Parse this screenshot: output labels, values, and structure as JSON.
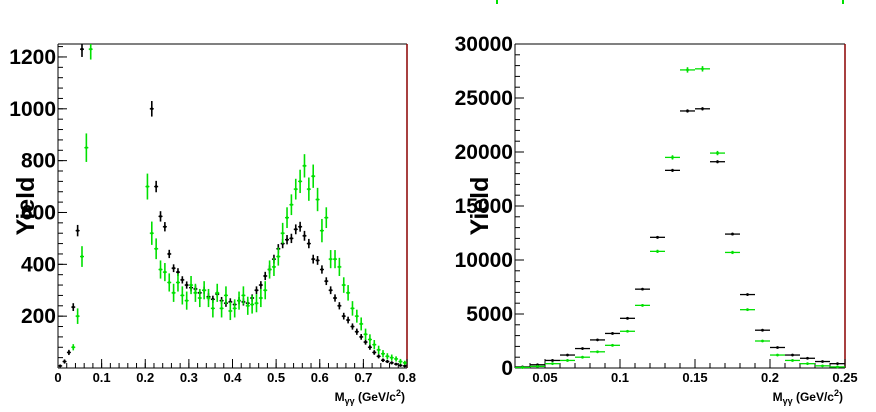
{
  "colors": {
    "black_series": "#000000",
    "green_series": "#00e000",
    "frame_right": "#8b0000"
  },
  "chart_data": [
    {
      "type": "scatter",
      "title": "",
      "ylabel": "Yield",
      "xlabel": "M",
      "xlabel_sub": "γγ",
      "xlabel_unit": " (GeV/c",
      "xlabel_sup": "2",
      "xlabel_close": ")",
      "xlim": [
        0,
        0.8
      ],
      "ylim": [
        0,
        1250
      ],
      "xticks": [
        0,
        0.1,
        0.2,
        0.3,
        0.4,
        0.5,
        0.6,
        0.7,
        0.8
      ],
      "xtick_labels": [
        "0",
        "0.1",
        "0.2",
        "0.3",
        "0.4",
        "0.5",
        "0.6",
        "0.7",
        "0.8"
      ],
      "yticks": [
        200,
        400,
        600,
        800,
        1000,
        1200
      ],
      "ytick_labels": [
        "200",
        "400",
        "600",
        "800",
        "1000",
        "1200"
      ],
      "grid": false,
      "series": [
        {
          "color": "#000000",
          "x_err": 0.002,
          "points": [
            [
              0.005,
              8,
              5
            ],
            [
              0.015,
              25,
              8
            ],
            [
              0.025,
              60,
              10
            ],
            [
              0.035,
              235,
              15
            ],
            [
              0.045,
              530,
              22
            ],
            [
              0.055,
              1230,
              30
            ],
            [
              0.215,
              1000,
              30
            ],
            [
              0.225,
              700,
              22
            ],
            [
              0.235,
              585,
              20
            ],
            [
              0.245,
              545,
              18
            ],
            [
              0.255,
              440,
              16
            ],
            [
              0.265,
              385,
              15
            ],
            [
              0.275,
              370,
              15
            ],
            [
              0.285,
              340,
              14
            ],
            [
              0.295,
              320,
              14
            ],
            [
              0.305,
              310,
              14
            ],
            [
              0.315,
              305,
              14
            ],
            [
              0.325,
              290,
              14
            ],
            [
              0.335,
              300,
              14
            ],
            [
              0.345,
              275,
              14
            ],
            [
              0.355,
              265,
              14
            ],
            [
              0.365,
              285,
              14
            ],
            [
              0.375,
              260,
              14
            ],
            [
              0.385,
              250,
              14
            ],
            [
              0.395,
              255,
              14
            ],
            [
              0.405,
              245,
              14
            ],
            [
              0.415,
              260,
              14
            ],
            [
              0.425,
              255,
              14
            ],
            [
              0.435,
              250,
              14
            ],
            [
              0.445,
              270,
              14
            ],
            [
              0.455,
              300,
              15
            ],
            [
              0.465,
              320,
              15
            ],
            [
              0.475,
              355,
              16
            ],
            [
              0.485,
              380,
              16
            ],
            [
              0.495,
              420,
              17
            ],
            [
              0.505,
              460,
              18
            ],
            [
              0.515,
              480,
              18
            ],
            [
              0.525,
              495,
              18
            ],
            [
              0.535,
              500,
              18
            ],
            [
              0.545,
              535,
              19
            ],
            [
              0.555,
              545,
              19
            ],
            [
              0.565,
              510,
              19
            ],
            [
              0.575,
              480,
              18
            ],
            [
              0.585,
              420,
              17
            ],
            [
              0.595,
              415,
              17
            ],
            [
              0.605,
              380,
              16
            ],
            [
              0.615,
              335,
              15
            ],
            [
              0.625,
              300,
              15
            ],
            [
              0.635,
              270,
              14
            ],
            [
              0.645,
              240,
              14
            ],
            [
              0.655,
              200,
              13
            ],
            [
              0.665,
              185,
              13
            ],
            [
              0.675,
              160,
              12
            ],
            [
              0.685,
              140,
              12
            ],
            [
              0.695,
              120,
              11
            ],
            [
              0.705,
              100,
              10
            ],
            [
              0.715,
              80,
              10
            ],
            [
              0.725,
              60,
              9
            ],
            [
              0.735,
              45,
              8
            ],
            [
              0.745,
              30,
              7
            ],
            [
              0.755,
              25,
              6
            ],
            [
              0.765,
              20,
              6
            ],
            [
              0.775,
              15,
              5
            ],
            [
              0.785,
              10,
              5
            ],
            [
              0.795,
              8,
              5
            ]
          ]
        },
        {
          "color": "#00e000",
          "x_err": 0.002,
          "points": [
            [
              0.035,
              80,
              12
            ],
            [
              0.045,
              200,
              30
            ],
            [
              0.055,
              430,
              40
            ],
            [
              0.065,
              850,
              55
            ],
            [
              0.075,
              1230,
              40
            ],
            [
              0.205,
              700,
              50
            ],
            [
              0.215,
              520,
              45
            ],
            [
              0.225,
              460,
              40
            ],
            [
              0.235,
              380,
              35
            ],
            [
              0.245,
              370,
              35
            ],
            [
              0.255,
              330,
              35
            ],
            [
              0.265,
              290,
              35
            ],
            [
              0.275,
              330,
              35
            ],
            [
              0.285,
              280,
              35
            ],
            [
              0.295,
              260,
              35
            ],
            [
              0.305,
              320,
              35
            ],
            [
              0.315,
              290,
              35
            ],
            [
              0.325,
              270,
              35
            ],
            [
              0.335,
              300,
              35
            ],
            [
              0.345,
              270,
              35
            ],
            [
              0.355,
              230,
              35
            ],
            [
              0.365,
              290,
              35
            ],
            [
              0.375,
              230,
              35
            ],
            [
              0.385,
              280,
              35
            ],
            [
              0.395,
              220,
              35
            ],
            [
              0.405,
              230,
              35
            ],
            [
              0.415,
              260,
              35
            ],
            [
              0.425,
              280,
              35
            ],
            [
              0.435,
              240,
              35
            ],
            [
              0.445,
              245,
              35
            ],
            [
              0.455,
              250,
              35
            ],
            [
              0.465,
              270,
              35
            ],
            [
              0.475,
              300,
              35
            ],
            [
              0.485,
              380,
              35
            ],
            [
              0.495,
              390,
              35
            ],
            [
              0.505,
              430,
              35
            ],
            [
              0.515,
              520,
              40
            ],
            [
              0.525,
              580,
              40
            ],
            [
              0.535,
              630,
              40
            ],
            [
              0.545,
              690,
              40
            ],
            [
              0.555,
              720,
              45
            ],
            [
              0.565,
              780,
              45
            ],
            [
              0.575,
              690,
              45
            ],
            [
              0.585,
              740,
              45
            ],
            [
              0.595,
              650,
              45
            ],
            [
              0.605,
              530,
              45
            ],
            [
              0.615,
              580,
              40
            ],
            [
              0.625,
              420,
              35
            ],
            [
              0.635,
              420,
              35
            ],
            [
              0.645,
              390,
              35
            ],
            [
              0.655,
              320,
              30
            ],
            [
              0.665,
              290,
              30
            ],
            [
              0.675,
              230,
              28
            ],
            [
              0.685,
              200,
              25
            ],
            [
              0.695,
              170,
              25
            ],
            [
              0.705,
              130,
              22
            ],
            [
              0.715,
              110,
              20
            ],
            [
              0.725,
              90,
              18
            ],
            [
              0.735,
              70,
              16
            ],
            [
              0.745,
              55,
              14
            ],
            [
              0.755,
              45,
              12
            ],
            [
              0.765,
              40,
              12
            ],
            [
              0.775,
              35,
              10
            ],
            [
              0.785,
              25,
              10
            ],
            [
              0.795,
              20,
              8
            ]
          ]
        }
      ]
    },
    {
      "type": "scatter",
      "title": "",
      "ylabel": "Yield",
      "xlabel": "M",
      "xlabel_sub": "γγ",
      "xlabel_unit": " (GeV/c",
      "xlabel_sup": "2",
      "xlabel_close": ")",
      "xlim": [
        0.03,
        0.25
      ],
      "ylim": [
        0,
        30000
      ],
      "xticks": [
        0.05,
        0.1,
        0.15,
        0.2,
        0.25
      ],
      "xtick_labels": [
        "0.05",
        "0.1",
        "0.15",
        "0.2",
        "0.25"
      ],
      "yticks": [
        0,
        5000,
        10000,
        15000,
        20000,
        25000,
        30000
      ],
      "ytick_labels": [
        "0",
        "5000",
        "10000",
        "15000",
        "20000",
        "25000",
        "30000"
      ],
      "grid": false,
      "series": [
        {
          "color": "#000000",
          "x_err": 0.005,
          "points": [
            [
              0.035,
              100,
              30
            ],
            [
              0.045,
              300,
              40
            ],
            [
              0.055,
              700,
              50
            ],
            [
              0.065,
              1200,
              60
            ],
            [
              0.075,
              1800,
              70
            ],
            [
              0.085,
              2600,
              80
            ],
            [
              0.095,
              3200,
              90
            ],
            [
              0.105,
              4600,
              100
            ],
            [
              0.115,
              7300,
              110
            ],
            [
              0.125,
              12100,
              120
            ],
            [
              0.135,
              18300,
              140
            ],
            [
              0.145,
              23800,
              150
            ],
            [
              0.155,
              24000,
              150
            ],
            [
              0.165,
              19100,
              140
            ],
            [
              0.175,
              12400,
              120
            ],
            [
              0.185,
              6800,
              100
            ],
            [
              0.195,
              3500,
              80
            ],
            [
              0.205,
              1900,
              70
            ],
            [
              0.215,
              1200,
              60
            ],
            [
              0.225,
              900,
              50
            ],
            [
              0.235,
              600,
              40
            ],
            [
              0.245,
              400,
              40
            ]
          ]
        },
        {
          "color": "#00e000",
          "x_err": 0.005,
          "points": [
            [
              0.035,
              50,
              30
            ],
            [
              0.045,
              150,
              40
            ],
            [
              0.055,
              400,
              50
            ],
            [
              0.065,
              700,
              60
            ],
            [
              0.075,
              1000,
              70
            ],
            [
              0.085,
              1500,
              80
            ],
            [
              0.095,
              2100,
              90
            ],
            [
              0.105,
              3400,
              100
            ],
            [
              0.115,
              5800,
              120
            ],
            [
              0.125,
              10800,
              150
            ],
            [
              0.135,
              19500,
              200
            ],
            [
              0.145,
              27600,
              250
            ],
            [
              0.155,
              27700,
              250
            ],
            [
              0.165,
              19900,
              200
            ],
            [
              0.175,
              10700,
              150
            ],
            [
              0.185,
              5400,
              120
            ],
            [
              0.195,
              2500,
              100
            ],
            [
              0.205,
              1200,
              80
            ],
            [
              0.215,
              700,
              60
            ],
            [
              0.225,
              400,
              50
            ],
            [
              0.235,
              200,
              40
            ],
            [
              0.245,
              100,
              30
            ]
          ]
        }
      ]
    }
  ]
}
